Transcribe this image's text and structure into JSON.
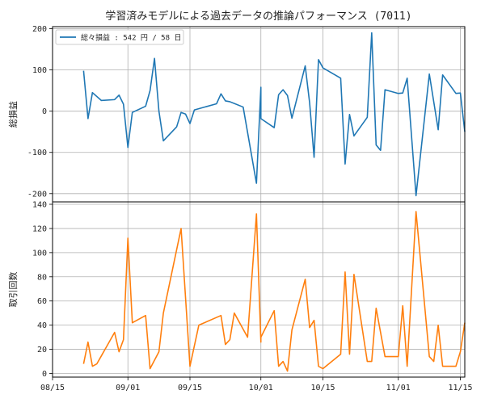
{
  "chart_data": [
    {
      "type": "line",
      "title": "学習済みモデルによる過去データの推論パフォーマンス (7011)",
      "ylabel": "総損益",
      "ylim": [
        -220,
        205
      ],
      "yticks": [
        -200,
        -100,
        0,
        100,
        200
      ],
      "grid": true,
      "legend": {
        "placement": "top-left",
        "label": "総々損益 : 542 円 / 58 日"
      },
      "series": [
        {
          "name": "総々損益 : 542 円 / 58 日",
          "color": "#1f77b4",
          "points": [
            [
              "2024-08-22",
              98
            ],
            [
              "2024-08-23",
              -18
            ],
            [
              "2024-08-24",
              45
            ],
            [
              "2024-08-26",
              26
            ],
            [
              "2024-08-29",
              28
            ],
            [
              "2024-08-30",
              39
            ],
            [
              "2024-08-31",
              17
            ],
            [
              "2024-09-01",
              -88
            ],
            [
              "2024-09-02",
              -3
            ],
            [
              "2024-09-05",
              12
            ],
            [
              "2024-09-06",
              50
            ],
            [
              "2024-09-07",
              128
            ],
            [
              "2024-09-08",
              0
            ],
            [
              "2024-09-09",
              -72
            ],
            [
              "2024-09-12",
              -38
            ],
            [
              "2024-09-13",
              -3
            ],
            [
              "2024-09-14",
              -7
            ],
            [
              "2024-09-15",
              -30
            ],
            [
              "2024-09-16",
              3
            ],
            [
              "2024-09-21",
              18
            ],
            [
              "2024-09-22",
              42
            ],
            [
              "2024-09-23",
              25
            ],
            [
              "2024-09-24",
              23
            ],
            [
              "2024-09-27",
              10
            ],
            [
              "2024-09-30",
              -175
            ],
            [
              "2024-09-31",
              58
            ],
            [
              "2024-10-01",
              -18
            ],
            [
              "2024-10-04",
              -40
            ],
            [
              "2024-10-05",
              40
            ],
            [
              "2024-10-06",
              52
            ],
            [
              "2024-10-07",
              38
            ],
            [
              "2024-10-08",
              -17
            ],
            [
              "2024-10-11",
              110
            ],
            [
              "2024-10-12",
              20
            ],
            [
              "2024-10-13",
              -112
            ],
            [
              "2024-10-14",
              125
            ],
            [
              "2024-10-15",
              105
            ],
            [
              "2024-10-19",
              80
            ],
            [
              "2024-10-20",
              -128
            ],
            [
              "2024-10-21",
              -8
            ],
            [
              "2024-10-22",
              -60
            ],
            [
              "2024-10-25",
              -15
            ],
            [
              "2024-10-26",
              190
            ],
            [
              "2024-10-27",
              -82
            ],
            [
              "2024-10-28",
              -95
            ],
            [
              "2024-10-29",
              52
            ],
            [
              "2024-11-01",
              43
            ],
            [
              "2024-11-02",
              44
            ],
            [
              "2024-11-03",
              80
            ],
            [
              "2024-11-05",
              -205
            ],
            [
              "2024-11-08",
              90
            ],
            [
              "2024-11-10",
              -45
            ],
            [
              "2024-11-11",
              88
            ],
            [
              "2024-11-14",
              43
            ],
            [
              "2024-11-15",
              44
            ],
            [
              "2024-11-16",
              -50
            ]
          ]
        }
      ]
    },
    {
      "type": "line",
      "ylabel": "取引回数",
      "ylim": [
        -3,
        142
      ],
      "yticks": [
        0,
        20,
        40,
        60,
        80,
        100,
        120,
        140
      ],
      "grid": true,
      "xaxis": {
        "type": "date",
        "range": [
          "2024-08-15",
          "2024-11-16"
        ],
        "ticks": [
          {
            "date": "2024-08-15",
            "label": "08/15"
          },
          {
            "date": "2024-09-01",
            "label": "09/01"
          },
          {
            "date": "2024-09-15",
            "label": "09/15"
          },
          {
            "date": "2024-10-01",
            "label": "10/01"
          },
          {
            "date": "2024-10-15",
            "label": "10/15"
          },
          {
            "date": "2024-11-01",
            "label": "11/01"
          },
          {
            "date": "2024-11-15",
            "label": "11/15"
          }
        ]
      },
      "series": [
        {
          "color": "#ff7f0e",
          "points": [
            [
              "2024-08-22",
              8
            ],
            [
              "2024-08-23",
              26
            ],
            [
              "2024-08-24",
              6
            ],
            [
              "2024-08-25",
              8
            ],
            [
              "2024-08-29",
              34
            ],
            [
              "2024-08-30",
              18
            ],
            [
              "2024-08-31",
              28
            ],
            [
              "2024-09-01",
              112
            ],
            [
              "2024-09-02",
              42
            ],
            [
              "2024-09-05",
              48
            ],
            [
              "2024-09-06",
              4
            ],
            [
              "2024-09-08",
              18
            ],
            [
              "2024-09-09",
              50
            ],
            [
              "2024-09-13",
              120
            ],
            [
              "2024-09-15",
              6
            ],
            [
              "2024-09-17",
              40
            ],
            [
              "2024-09-22",
              48
            ],
            [
              "2024-09-23",
              24
            ],
            [
              "2024-09-24",
              28
            ],
            [
              "2024-09-25",
              50
            ],
            [
              "2024-09-28",
              30
            ],
            [
              "2024-09-30",
              132
            ],
            [
              "2024-09-31",
              26
            ],
            [
              "2024-10-01",
              30
            ],
            [
              "2024-10-04",
              52
            ],
            [
              "2024-10-05",
              6
            ],
            [
              "2024-10-06",
              10
            ],
            [
              "2024-10-07",
              2
            ],
            [
              "2024-10-08",
              36
            ],
            [
              "2024-10-11",
              78
            ],
            [
              "2024-10-12",
              38
            ],
            [
              "2024-10-13",
              44
            ],
            [
              "2024-10-14",
              6
            ],
            [
              "2024-10-15",
              4
            ],
            [
              "2024-10-19",
              16
            ],
            [
              "2024-10-20",
              84
            ],
            [
              "2024-10-21",
              16
            ],
            [
              "2024-10-22",
              82
            ],
            [
              "2024-10-25",
              10
            ],
            [
              "2024-10-26",
              10
            ],
            [
              "2024-10-27",
              54
            ],
            [
              "2024-10-29",
              14
            ],
            [
              "2024-11-01",
              14
            ],
            [
              "2024-11-02",
              56
            ],
            [
              "2024-11-03",
              6
            ],
            [
              "2024-11-05",
              134
            ],
            [
              "2024-11-08",
              14
            ],
            [
              "2024-11-09",
              10
            ],
            [
              "2024-11-10",
              40
            ],
            [
              "2024-11-11",
              6
            ],
            [
              "2024-11-14",
              6
            ],
            [
              "2024-11-15",
              18
            ],
            [
              "2024-11-16",
              42
            ]
          ]
        }
      ]
    }
  ]
}
